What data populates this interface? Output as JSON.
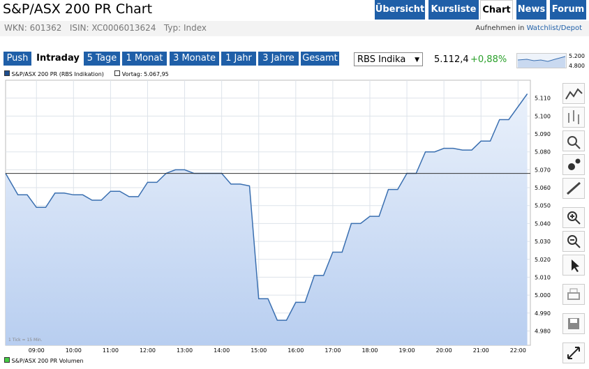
{
  "header": {
    "title": "S&P/ASX 200 PR Chart",
    "tabs": [
      "Übersicht",
      "Kursliste",
      "Chart",
      "News",
      "Forum"
    ]
  },
  "info": {
    "wkn": "WKN: 601362",
    "isin": "ISIN: XC0006013624",
    "typ": "Typ: Index",
    "watch_prefix": "Aufnehmen in",
    "watch_link": "Watchlist/Depot"
  },
  "controls": {
    "ranges": [
      "Push",
      "Intraday",
      "5 Tage",
      "1 Monat",
      "3 Monate",
      "1 Jahr",
      "3 Jahre",
      "Gesamt"
    ],
    "select": "RBS Indika",
    "price": "5.112,4",
    "change": "+0,88%",
    "mini_chart_labels": [
      "5.200",
      "4.800"
    ]
  },
  "chart_data": {
    "type": "line",
    "series_name": "S&P/ASX 200 PR (RBS Indikation)",
    "reference": {
      "label": "Vortag: 5.067,95",
      "value": 5067.95
    },
    "note": "1 Tick = 15 Min.",
    "volume_legend": "S&P/ASX 200 PR Volumen",
    "color": "#3a6fb0",
    "grid": true,
    "x": [
      "08:10",
      "08:30",
      "08:45",
      "09:00",
      "09:15",
      "09:30",
      "09:45",
      "10:00",
      "10:15",
      "10:30",
      "10:45",
      "11:00",
      "11:15",
      "11:30",
      "11:45",
      "12:00",
      "12:15",
      "12:30",
      "12:45",
      "13:00",
      "13:15",
      "13:30",
      "13:45",
      "14:00",
      "14:15",
      "14:30",
      "14:45",
      "15:00",
      "15:15",
      "15:30",
      "15:45",
      "16:00",
      "16:15",
      "16:30",
      "16:45",
      "17:00",
      "17:15",
      "17:30",
      "17:45",
      "18:00",
      "18:15",
      "18:30",
      "18:45",
      "19:00",
      "19:15",
      "19:30",
      "19:45",
      "20:00",
      "20:15",
      "20:30",
      "20:45",
      "21:00",
      "21:15",
      "21:30",
      "21:45",
      "22:15"
    ],
    "values": [
      5068,
      5056,
      5056,
      5049,
      5049,
      5057,
      5057,
      5056,
      5056,
      5053,
      5053,
      5058,
      5058,
      5055,
      5055,
      5063,
      5063,
      5068,
      5070,
      5070,
      5068,
      5068,
      5068,
      5068,
      5062,
      5062,
      5061,
      4998,
      4998,
      4986,
      4986,
      4996,
      4996,
      5011,
      5011,
      5024,
      5024,
      5040,
      5040,
      5044,
      5044,
      5059,
      5059,
      5068,
      5068,
      5080,
      5080,
      5082,
      5082,
      5081,
      5081,
      5086,
      5086,
      5098,
      5098,
      5112.4
    ],
    "xlim": [
      "08:10",
      "22:20"
    ],
    "xticks": [
      "09:00",
      "10:00",
      "11:00",
      "12:00",
      "13:00",
      "14:00",
      "15:00",
      "16:00",
      "17:00",
      "18:00",
      "19:00",
      "20:00",
      "21:00",
      "22:00"
    ],
    "ylim": [
      4972,
      5120
    ],
    "yticks": [
      {
        "value": 4980,
        "label": "4.980"
      },
      {
        "value": 4990,
        "label": "4.990"
      },
      {
        "value": 5000,
        "label": "5.000"
      },
      {
        "value": 5010,
        "label": "5.010"
      },
      {
        "value": 5020,
        "label": "5.020"
      },
      {
        "value": 5030,
        "label": "5.030"
      },
      {
        "value": 5040,
        "label": "5.040"
      },
      {
        "value": 5050,
        "label": "5.050"
      },
      {
        "value": 5060,
        "label": "5.060"
      },
      {
        "value": 5070,
        "label": "5.070"
      },
      {
        "value": 5080,
        "label": "5.080"
      },
      {
        "value": 5090,
        "label": "5.090"
      },
      {
        "value": 5100,
        "label": "5.100"
      },
      {
        "value": 5110,
        "label": "5.110"
      }
    ]
  }
}
